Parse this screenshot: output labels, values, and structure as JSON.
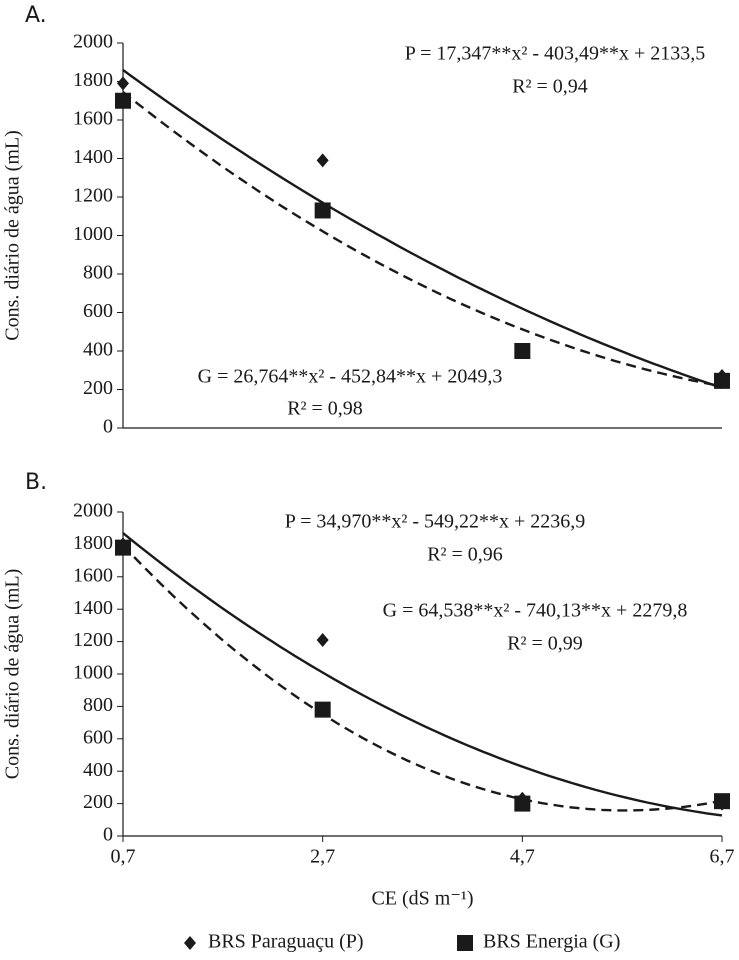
{
  "chart_data": [
    {
      "type": "scatter",
      "label": "A.",
      "y_label": "Cons. diário de água (mL)",
      "x": [
        0.7,
        2.7,
        4.7,
        6.7
      ],
      "xlim": [
        0.7,
        6.7
      ],
      "ylim": [
        0,
        2000
      ],
      "yticks": [
        0,
        200,
        400,
        600,
        800,
        1000,
        1200,
        1400,
        1600,
        1800,
        2000
      ],
      "series": [
        {
          "marker": "diamond",
          "color": "#1a1a1a",
          "line": "solid",
          "fit": [
            17.347,
            -403.49,
            2133.5
          ],
          "values": [
            1790,
            1390,
            400,
            270
          ]
        },
        {
          "marker": "square",
          "color": "#1a1a1a",
          "line": "dashed",
          "fit": [
            26.764,
            -452.84,
            2049.3
          ],
          "values": [
            1700,
            1130,
            400,
            245
          ]
        }
      ],
      "annotations": [
        "P = 17,347**x² - 403,49**x + 2133,5",
        "R² = 0,94",
        "G = 26,764**x² - 452,84**x + 2049,3",
        "R² = 0,98"
      ]
    },
    {
      "type": "scatter",
      "label": "B.",
      "y_label": "Cons. diário de água (mL)",
      "x_label": "CE (dS m⁻¹)",
      "x": [
        0.7,
        2.7,
        4.7,
        6.7
      ],
      "xlim": [
        0.7,
        6.7
      ],
      "ylim": [
        0,
        2000
      ],
      "xticks": [
        {
          "value": 0.7,
          "label": "0,7"
        },
        {
          "value": 2.7,
          "label": "2,7"
        },
        {
          "value": 4.7,
          "label": "4,7"
        },
        {
          "value": 6.7,
          "label": "6,7"
        }
      ],
      "yticks": [
        0,
        200,
        400,
        600,
        800,
        1000,
        1200,
        1400,
        1600,
        1800,
        2000
      ],
      "series": [
        {
          "name": "BRS Paraguaçu (P)",
          "marker": "diamond",
          "color": "#1a1a1a",
          "line": "solid",
          "fit": [
            34.97,
            -549.22,
            2236.9
          ],
          "values": [
            1800,
            1210,
            230,
            200
          ]
        },
        {
          "name": "BRS Energia (G)",
          "marker": "square",
          "color": "#1a1a1a",
          "line": "dashed",
          "fit": [
            64.538,
            -740.13,
            2279.8
          ],
          "values": [
            1780,
            780,
            200,
            215
          ]
        }
      ],
      "annotations": [
        "P = 34,970**x² - 549,22**x + 2236,9",
        "R² = 0,96",
        "G = 64,538**x² - 740,13**x + 2279,8",
        "R² = 0,99"
      ]
    }
  ]
}
